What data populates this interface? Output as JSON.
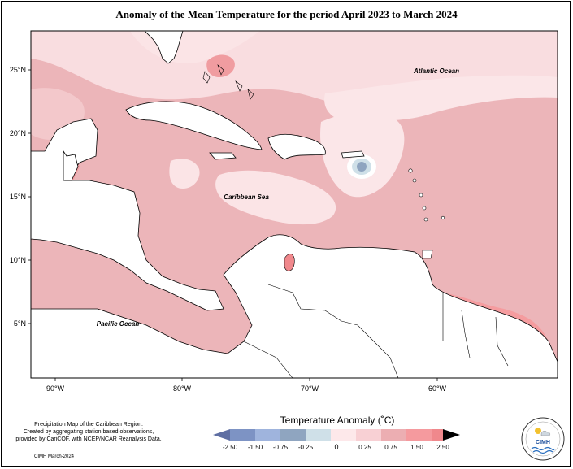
{
  "title": "Anomaly of the Mean Temperature for the period April 2023 to March 2024",
  "map": {
    "lat_labels": [
      "25°N",
      "20°N",
      "15°N",
      "10°N",
      "5°N"
    ],
    "lon_labels": [
      "90°W",
      "80°W",
      "70°W",
      "60°W"
    ],
    "ocean_labels": {
      "atlantic": "Atlantic Ocean",
      "caribbean": "Caribbean Sea",
      "pacific": "Pacific Ocean"
    }
  },
  "legend": {
    "title": "Temperature Anomaly (˚C)",
    "ticks": [
      "-2.50",
      "-1.50",
      "-0.75",
      "-0.25",
      "0",
      "0.25",
      "0.75",
      "1.50",
      "2.50"
    ],
    "colors": [
      "#5f6fa3",
      "#7d93c4",
      "#9fb4dd",
      "#8fa5c0",
      "#cfe0e8",
      "#fde8ea",
      "#f8d0d4",
      "#ecaeb2",
      "#f59a9e",
      "#f0888c"
    ]
  },
  "credit": {
    "line1": "Precipitation Map of the Caribbean Region.",
    "line2": "Created by aggregating station based observations,",
    "line3": "provided by CariCOF, with NCEP/NCAR Reanalysis Data.",
    "date": "CIMH March-2024"
  },
  "logo": {
    "text": "CIMH"
  }
}
